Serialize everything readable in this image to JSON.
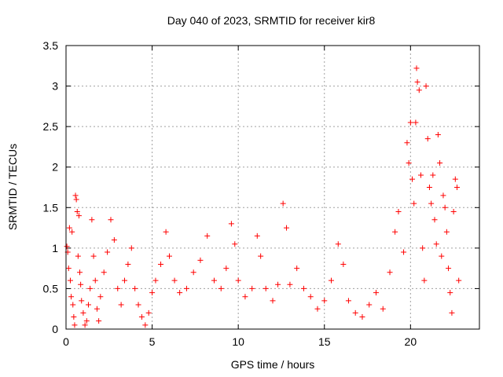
{
  "chart_data": {
    "type": "scatter",
    "title": "Day 040 of 2023, SRMTID for receiver kir8",
    "xlabel": "GPS time / hours",
    "ylabel": "SRMTID / TECUs",
    "xlim": [
      0,
      24
    ],
    "ylim": [
      0,
      3.5
    ],
    "grid": true,
    "x_ticks": [
      "0",
      "5",
      "10",
      "15",
      "20"
    ],
    "y_ticks": [
      "0",
      "0.5",
      "1",
      "1.5",
      "2",
      "2.5",
      "3",
      "3.5"
    ],
    "marker": "+",
    "color": "#ff0000",
    "series": [
      {
        "name": "kir8",
        "points": [
          [
            0.05,
            1.02
          ],
          [
            0.1,
            0.95
          ],
          [
            0.15,
            0.75
          ],
          [
            0.2,
            1.25
          ],
          [
            0.25,
            0.6
          ],
          [
            0.3,
            0.4
          ],
          [
            0.35,
            1.2
          ],
          [
            0.4,
            0.3
          ],
          [
            0.45,
            0.15
          ],
          [
            0.5,
            0.05
          ],
          [
            0.55,
            1.65
          ],
          [
            0.6,
            1.6
          ],
          [
            0.65,
            1.45
          ],
          [
            0.7,
            0.9
          ],
          [
            0.75,
            1.4
          ],
          [
            0.8,
            0.7
          ],
          [
            0.85,
            0.55
          ],
          [
            0.9,
            0.35
          ],
          [
            1.0,
            0.2
          ],
          [
            1.1,
            0.05
          ],
          [
            1.2,
            0.1
          ],
          [
            1.3,
            0.3
          ],
          [
            1.4,
            0.5
          ],
          [
            1.5,
            1.35
          ],
          [
            1.6,
            0.9
          ],
          [
            1.7,
            0.6
          ],
          [
            1.8,
            0.25
          ],
          [
            1.9,
            0.1
          ],
          [
            2.0,
            0.4
          ],
          [
            2.2,
            0.7
          ],
          [
            2.4,
            0.95
          ],
          [
            2.6,
            1.35
          ],
          [
            2.8,
            1.1
          ],
          [
            3.0,
            0.5
          ],
          [
            3.2,
            0.3
          ],
          [
            3.4,
            0.6
          ],
          [
            3.6,
            0.8
          ],
          [
            3.8,
            1.0
          ],
          [
            4.0,
            0.5
          ],
          [
            4.2,
            0.3
          ],
          [
            4.4,
            0.15
          ],
          [
            4.6,
            0.05
          ],
          [
            4.8,
            0.2
          ],
          [
            5.0,
            0.45
          ],
          [
            5.2,
            0.6
          ],
          [
            5.5,
            0.8
          ],
          [
            5.8,
            1.2
          ],
          [
            6.0,
            0.9
          ],
          [
            6.3,
            0.6
          ],
          [
            6.6,
            0.45
          ],
          [
            7.0,
            0.5
          ],
          [
            7.4,
            0.7
          ],
          [
            7.8,
            0.85
          ],
          [
            8.2,
            1.15
          ],
          [
            8.6,
            0.6
          ],
          [
            9.0,
            0.5
          ],
          [
            9.3,
            0.75
          ],
          [
            9.6,
            1.3
          ],
          [
            9.8,
            1.05
          ],
          [
            10.0,
            0.6
          ],
          [
            10.4,
            0.4
          ],
          [
            10.8,
            0.5
          ],
          [
            11.1,
            1.15
          ],
          [
            11.3,
            0.9
          ],
          [
            11.6,
            0.5
          ],
          [
            12.0,
            0.35
          ],
          [
            12.3,
            0.55
          ],
          [
            12.6,
            1.55
          ],
          [
            12.8,
            1.25
          ],
          [
            13.0,
            0.55
          ],
          [
            13.4,
            0.75
          ],
          [
            13.8,
            0.5
          ],
          [
            14.2,
            0.4
          ],
          [
            14.6,
            0.25
          ],
          [
            15.0,
            0.35
          ],
          [
            15.4,
            0.6
          ],
          [
            15.8,
            1.05
          ],
          [
            16.1,
            0.8
          ],
          [
            16.4,
            0.35
          ],
          [
            16.8,
            0.2
          ],
          [
            17.2,
            0.15
          ],
          [
            17.6,
            0.3
          ],
          [
            18.0,
            0.45
          ],
          [
            18.4,
            0.25
          ],
          [
            18.8,
            0.7
          ],
          [
            19.1,
            1.2
          ],
          [
            19.3,
            1.45
          ],
          [
            19.6,
            0.95
          ],
          [
            19.8,
            2.3
          ],
          [
            19.9,
            2.05
          ],
          [
            20.0,
            2.55
          ],
          [
            20.1,
            1.85
          ],
          [
            20.2,
            1.55
          ],
          [
            20.3,
            2.55
          ],
          [
            20.35,
            3.22
          ],
          [
            20.4,
            3.05
          ],
          [
            20.5,
            2.95
          ],
          [
            20.6,
            1.9
          ],
          [
            20.7,
            1.0
          ],
          [
            20.8,
            0.6
          ],
          [
            20.9,
            3.0
          ],
          [
            21.0,
            2.35
          ],
          [
            21.1,
            1.75
          ],
          [
            21.2,
            1.55
          ],
          [
            21.3,
            1.9
          ],
          [
            21.4,
            1.35
          ],
          [
            21.5,
            1.05
          ],
          [
            21.6,
            2.4
          ],
          [
            21.7,
            2.05
          ],
          [
            21.8,
            0.9
          ],
          [
            21.9,
            1.65
          ],
          [
            22.0,
            1.5
          ],
          [
            22.1,
            1.2
          ],
          [
            22.2,
            0.75
          ],
          [
            22.3,
            0.45
          ],
          [
            22.4,
            0.2
          ],
          [
            22.5,
            1.45
          ],
          [
            22.6,
            1.85
          ],
          [
            22.7,
            1.75
          ],
          [
            22.8,
            0.6
          ]
        ]
      }
    ]
  }
}
